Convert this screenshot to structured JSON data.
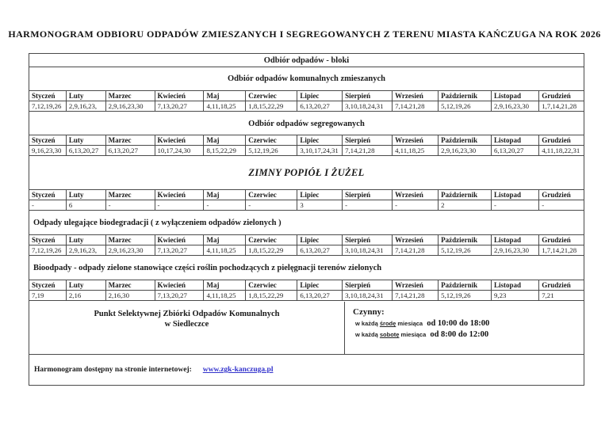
{
  "title": "HARMONOGRAM ODBIORU ODPADÓW ZMIESZANYCH I SEGREGOWANYCH Z TERENU MIASTA KAŃCZUGA NA ROK 2026",
  "months": [
    "Styczeń",
    "Luty",
    "Marzec",
    "Kwiecień",
    "Maj",
    "Czerwiec",
    "Lipiec",
    "Sierpień",
    "Wrzesień",
    "Październik",
    "Listopad",
    "Grudzień"
  ],
  "sections": [
    {
      "id": "bloki",
      "title": "Odbiór odpadów - bloki"
    },
    {
      "id": "zmieszane",
      "title": "Odbiór odpadów komunalnych zmieszanych",
      "values": [
        "7,12,19,26",
        "2,9,16,23,",
        "2,9,16,23,30",
        "7,13,20,27",
        "4,11,18,25",
        "1,8,15,22,29",
        "6,13,20,27",
        "3,10,18,24,31",
        "7,14,21,28",
        "5,12,19,26",
        "2,9,16,23,30",
        "1,7,14,21,28"
      ]
    },
    {
      "id": "segregowane",
      "title": "Odbiór odpadów segregowanych",
      "values": [
        "9,16,23,30",
        "6,13,20,27",
        "6,13,20,27",
        "10,17,24,30",
        "8,15,22,29",
        "5,12,19,26",
        "3,10,17,24,31",
        "7,14,21,28",
        "4,11,18,25",
        "2,9,16,23,30",
        "6,13,20,27",
        "4,11,18,22,31"
      ]
    },
    {
      "id": "popiol",
      "title": "ZIMNY POPIÓŁ I ŻUŻEL",
      "values": [
        "-",
        "6",
        "-",
        "-",
        "-",
        "-",
        "3",
        "-",
        "-",
        "2",
        "-",
        "-"
      ]
    },
    {
      "id": "biodegradacja",
      "title": "Odpady ulegające biodegradacji ( z wyłączeniem odpadów zielonych )",
      "values": [
        "7,12,19,26",
        "2,9,16,23,",
        "2,9,16,23,30",
        "7,13,20,27",
        "4,11,18,25",
        "1,8,15,22,29",
        "6,13,20,27",
        "3,10,18,24,31",
        "7,14,21,28",
        "5,12,19,26",
        "2,9,16,23,30",
        "1,7,14,21,28"
      ]
    },
    {
      "id": "bioodpady",
      "title": "Bioodpady - odpady zielone stanowiące części roślin pochodzących z pielęgnacji terenów zielonych",
      "values": [
        "7,19",
        "2,16",
        "2,16,30",
        "7,13,20,27",
        "4,11,18,25",
        "1,8,15,22,29",
        "6,13,20,27",
        "3,10,18,24,31",
        "7,14,21,28",
        "5,12,19,26",
        "9,23",
        "7,21"
      ]
    }
  ],
  "pszok": {
    "name_line1": "Punkt Selektywnej Zbiórki Odpadów Komunalnych",
    "name_line2": "w Siedleczce",
    "open_label": "Czynny:",
    "hours": [
      {
        "prefix": "w każdą",
        "day": "środę",
        "suffix": "miesiąca",
        "time": "od 10:00 do 18:00"
      },
      {
        "prefix": "w każdą",
        "day": "sobotę",
        "suffix": "miesiąca",
        "time": "od 8:00 do 12:00"
      }
    ]
  },
  "footer": {
    "label": "Harmonogram dostępny na stronie internetowej:",
    "link": "www.zgk-kanczuga.pl",
    "link_color": "#3333cc"
  }
}
